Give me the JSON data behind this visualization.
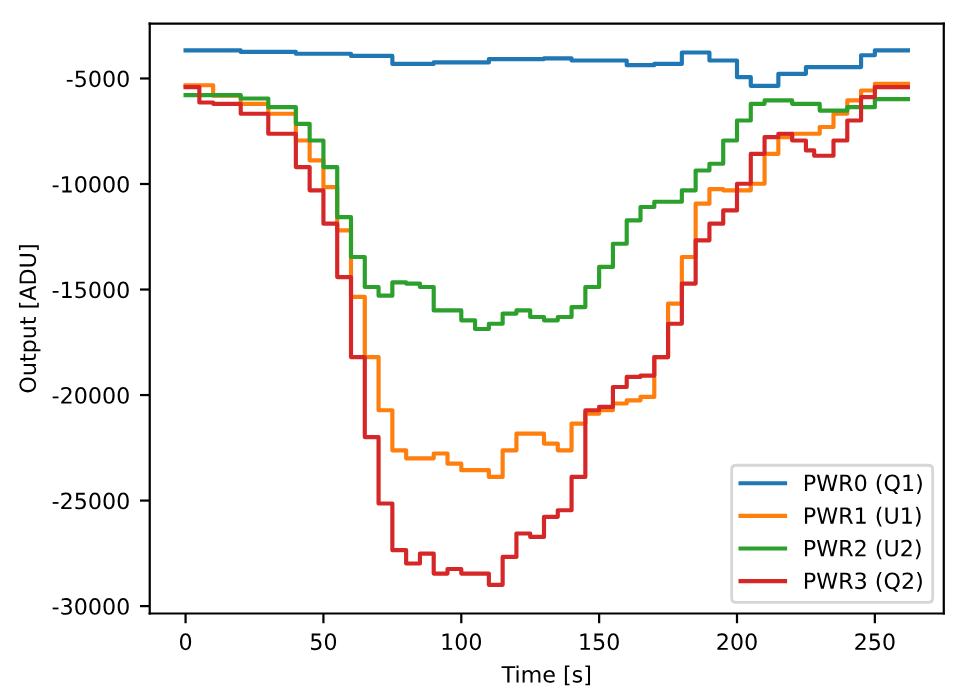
{
  "chart_data": {
    "type": "step",
    "xlabel": "Time [s]",
    "ylabel": "Output [ADU]",
    "xlim": [
      -13,
      275
    ],
    "ylim": [
      -30350,
      -2400
    ],
    "xticks": [
      0,
      50,
      100,
      150,
      200,
      250
    ],
    "yticks": [
      -30000,
      -25000,
      -20000,
      -15000,
      -10000,
      -5000
    ],
    "grid": false,
    "legend": "bottom right",
    "series": [
      {
        "name": "PWR0 (Q1)",
        "color": "#1f77b4",
        "x": [
          0,
          20,
          40,
          60,
          75,
          90,
          110,
          130,
          140,
          160,
          170,
          180,
          190,
          200,
          205,
          215,
          225,
          235,
          245,
          250,
          262
        ],
        "values": [
          -3670,
          -3740,
          -3830,
          -3930,
          -4310,
          -4240,
          -4080,
          -4050,
          -4150,
          -4370,
          -4310,
          -3770,
          -4150,
          -4940,
          -5350,
          -4780,
          -4460,
          -4460,
          -3900,
          -3670,
          -3670
        ]
      },
      {
        "name": "PWR1 (U1)",
        "color": "#ff7f0e",
        "x": [
          0,
          5,
          10,
          20,
          30,
          40,
          45,
          50,
          55,
          60,
          65,
          70,
          75,
          80,
          90,
          95,
          100,
          110,
          115,
          120,
          130,
          135,
          140,
          145,
          150,
          155,
          160,
          165,
          170,
          175,
          180,
          185,
          190,
          195,
          200,
          205,
          210,
          215,
          220,
          225,
          230,
          235,
          240,
          245,
          250,
          262
        ],
        "values": [
          -5320,
          -5320,
          -5820,
          -6200,
          -6670,
          -7940,
          -8880,
          -10150,
          -12200,
          -15350,
          -18200,
          -20720,
          -22620,
          -23000,
          -22770,
          -23250,
          -23560,
          -23880,
          -22620,
          -21830,
          -22300,
          -22620,
          -21350,
          -20880,
          -20720,
          -20400,
          -20250,
          -20090,
          -18200,
          -15670,
          -13460,
          -10930,
          -10240,
          -10300,
          -10300,
          -9990,
          -8570,
          -7780,
          -7620,
          -7620,
          -7300,
          -6670,
          -6040,
          -5570,
          -5250,
          -5250
        ]
      },
      {
        "name": "PWR2 (U2)",
        "color": "#2ca02c",
        "x": [
          0,
          20,
          30,
          40,
          45,
          50,
          55,
          60,
          65,
          70,
          75,
          80,
          85,
          90,
          100,
          105,
          110,
          115,
          120,
          125,
          130,
          135,
          140,
          145,
          150,
          155,
          160,
          165,
          170,
          175,
          180,
          185,
          190,
          195,
          200,
          205,
          210,
          220,
          230,
          240,
          250,
          262
        ],
        "values": [
          -5790,
          -5950,
          -6360,
          -7150,
          -7940,
          -9200,
          -11570,
          -13460,
          -14880,
          -15290,
          -14660,
          -14720,
          -14880,
          -15990,
          -16460,
          -16870,
          -16620,
          -16140,
          -15990,
          -16300,
          -16460,
          -16300,
          -15830,
          -14880,
          -13930,
          -12830,
          -11720,
          -11090,
          -10840,
          -10840,
          -10300,
          -9360,
          -9040,
          -7940,
          -6990,
          -6200,
          -6040,
          -6200,
          -6520,
          -6360,
          -5980,
          -5980
        ]
      },
      {
        "name": "PWR3 (Q2)",
        "color": "#d62728",
        "x": [
          0,
          5,
          10,
          20,
          30,
          40,
          45,
          50,
          55,
          60,
          65,
          70,
          75,
          80,
          85,
          90,
          95,
          100,
          110,
          115,
          120,
          125,
          130,
          135,
          140,
          145,
          150,
          155,
          160,
          165,
          170,
          175,
          180,
          185,
          190,
          195,
          200,
          205,
          210,
          215,
          220,
          225,
          228,
          235,
          240,
          245,
          250,
          262
        ],
        "values": [
          -5410,
          -6140,
          -6200,
          -6670,
          -7620,
          -9200,
          -10300,
          -11880,
          -14410,
          -18200,
          -21990,
          -25140,
          -27350,
          -27980,
          -27510,
          -28460,
          -28240,
          -28460,
          -28990,
          -27670,
          -26560,
          -26720,
          -25770,
          -25460,
          -23880,
          -20720,
          -20560,
          -19620,
          -19140,
          -19080,
          -18200,
          -16620,
          -14720,
          -12670,
          -11880,
          -11250,
          -9990,
          -8570,
          -7780,
          -7620,
          -7940,
          -8410,
          -8660,
          -7940,
          -6990,
          -5880,
          -5410,
          -5410
        ]
      }
    ]
  }
}
